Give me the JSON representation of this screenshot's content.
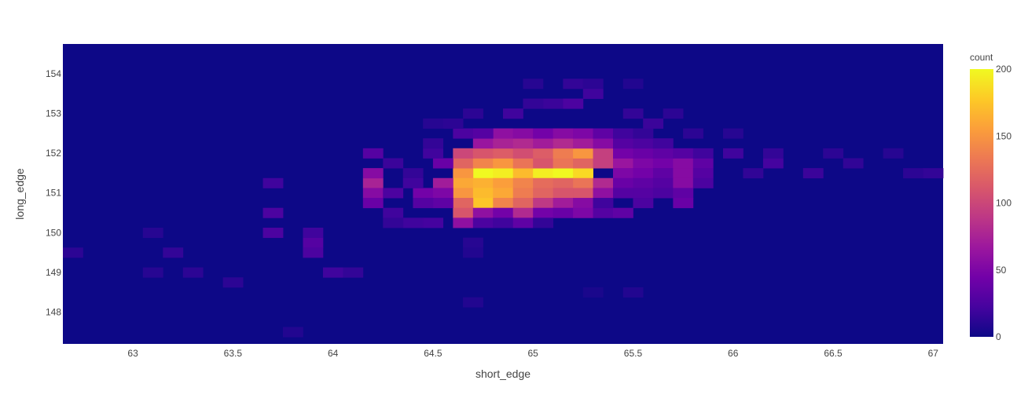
{
  "chart_data": {
    "type": "heatmap",
    "title": "",
    "xlabel": "short_edge",
    "ylabel": "long_edge",
    "colorbar_title": "count",
    "xlim": [
      62.65,
      67.05
    ],
    "ylim": [
      147.2,
      154.75
    ],
    "x_ticks": [
      "63",
      "63.5",
      "64",
      "64.5",
      "65",
      "65.5",
      "66",
      "66.5",
      "67"
    ],
    "x_tick_values": [
      63,
      63.5,
      64,
      64.5,
      65,
      65.5,
      66,
      66.5,
      67
    ],
    "y_ticks": [
      "148",
      "149",
      "150",
      "151",
      "152",
      "153",
      "154"
    ],
    "y_tick_values": [
      148,
      149,
      150,
      151,
      152,
      153,
      154
    ],
    "colorbar_ticks": [
      "0",
      "50",
      "100",
      "150",
      "200"
    ],
    "colorbar_tick_values": [
      0,
      50,
      100,
      150,
      200
    ],
    "zlim": [
      0,
      200
    ],
    "colorscale": "plasma",
    "colorscale_stops": [
      "#0d0887",
      "#46039f",
      "#7201a8",
      "#9c179e",
      "#bd3786",
      "#d8576b",
      "#ed7953",
      "#fb9f3a",
      "#fdca26",
      "#f0f921"
    ],
    "bin_width_x": 0.1,
    "bin_width_y": 0.25,
    "cells": [
      [
        64.75,
        151.5,
        200
      ],
      [
        64.85,
        151.5,
        195
      ],
      [
        64.95,
        151.5,
        170
      ],
      [
        65.05,
        151.5,
        195
      ],
      [
        65.15,
        151.5,
        200
      ],
      [
        65.25,
        151.5,
        185
      ],
      [
        64.65,
        151.5,
        150
      ],
      [
        64.65,
        151.25,
        160
      ],
      [
        64.75,
        151.25,
        165
      ],
      [
        64.85,
        151.25,
        155
      ],
      [
        64.95,
        151.25,
        140
      ],
      [
        65.05,
        151.25,
        125
      ],
      [
        65.15,
        151.25,
        120
      ],
      [
        65.25,
        151.25,
        130
      ],
      [
        65.35,
        151.25,
        80
      ],
      [
        64.65,
        151.0,
        150
      ],
      [
        64.75,
        151.0,
        170
      ],
      [
        64.85,
        151.0,
        160
      ],
      [
        64.95,
        151.0,
        135
      ],
      [
        65.05,
        151.0,
        120
      ],
      [
        65.15,
        151.0,
        110
      ],
      [
        65.25,
        151.0,
        110
      ],
      [
        65.35,
        151.0,
        60
      ],
      [
        64.75,
        150.75,
        175
      ],
      [
        64.85,
        150.75,
        140
      ],
      [
        64.95,
        150.75,
        120
      ],
      [
        65.05,
        150.75,
        90
      ],
      [
        65.15,
        150.75,
        70
      ],
      [
        65.25,
        150.75,
        55
      ],
      [
        64.65,
        150.75,
        120
      ],
      [
        64.65,
        150.5,
        110
      ],
      [
        64.75,
        150.5,
        60
      ],
      [
        64.85,
        150.5,
        45
      ],
      [
        64.95,
        150.5,
        80
      ],
      [
        65.05,
        150.5,
        45
      ],
      [
        65.15,
        150.5,
        40
      ],
      [
        65.25,
        150.5,
        50
      ],
      [
        65.35,
        150.5,
        30
      ],
      [
        64.65,
        150.25,
        60
      ],
      [
        64.75,
        150.25,
        25
      ],
      [
        64.85,
        150.25,
        20
      ],
      [
        64.95,
        150.25,
        35
      ],
      [
        65.05,
        150.25,
        15
      ],
      [
        64.65,
        151.75,
        120
      ],
      [
        64.75,
        151.75,
        140
      ],
      [
        64.85,
        151.75,
        150
      ],
      [
        64.95,
        151.75,
        130
      ],
      [
        65.05,
        151.75,
        110
      ],
      [
        65.15,
        151.75,
        130
      ],
      [
        65.25,
        151.75,
        120
      ],
      [
        65.35,
        151.75,
        95
      ],
      [
        64.55,
        151.75,
        40
      ],
      [
        64.65,
        152.0,
        100
      ],
      [
        64.75,
        152.0,
        110
      ],
      [
        64.85,
        152.0,
        115
      ],
      [
        64.95,
        152.0,
        105
      ],
      [
        65.05,
        152.0,
        115
      ],
      [
        65.15,
        152.0,
        135
      ],
      [
        65.25,
        152.0,
        150
      ],
      [
        65.35,
        152.0,
        95
      ],
      [
        65.45,
        152.0,
        75
      ],
      [
        64.75,
        152.25,
        65
      ],
      [
        64.85,
        152.25,
        75
      ],
      [
        64.95,
        152.25,
        80
      ],
      [
        65.05,
        152.25,
        70
      ],
      [
        65.15,
        152.25,
        80
      ],
      [
        65.25,
        152.25,
        70
      ],
      [
        65.35,
        152.25,
        55
      ],
      [
        64.85,
        152.5,
        60
      ],
      [
        64.95,
        152.5,
        55
      ],
      [
        65.05,
        152.5,
        45
      ],
      [
        65.15,
        152.5,
        55
      ],
      [
        65.25,
        152.5,
        50
      ],
      [
        65.35,
        152.5,
        35
      ],
      [
        64.55,
        151.25,
        70
      ],
      [
        64.45,
        151.0,
        45
      ],
      [
        64.55,
        151.0,
        50
      ],
      [
        64.55,
        150.75,
        35
      ],
      [
        64.45,
        150.75,
        30
      ],
      [
        64.2,
        151.25,
        75
      ],
      [
        64.2,
        151.0,
        55
      ],
      [
        64.2,
        150.75,
        40
      ],
      [
        64.2,
        151.5,
        55
      ],
      [
        64.2,
        152.0,
        30
      ],
      [
        65.45,
        151.75,
        65
      ],
      [
        65.55,
        151.75,
        50
      ],
      [
        65.65,
        151.75,
        45
      ],
      [
        65.75,
        151.75,
        55
      ],
      [
        65.85,
        151.75,
        35
      ],
      [
        65.45,
        151.5,
        50
      ],
      [
        65.55,
        151.5,
        45
      ],
      [
        65.65,
        151.5,
        35
      ],
      [
        65.75,
        151.5,
        55
      ],
      [
        65.85,
        151.5,
        30
      ],
      [
        65.45,
        151.25,
        40
      ],
      [
        65.55,
        151.25,
        35
      ],
      [
        65.65,
        151.25,
        30
      ],
      [
        65.75,
        151.25,
        55
      ],
      [
        65.85,
        151.25,
        25
      ],
      [
        65.45,
        151.0,
        30
      ],
      [
        65.55,
        151.0,
        30
      ],
      [
        65.65,
        151.0,
        25
      ],
      [
        65.75,
        151.0,
        35
      ],
      [
        65.45,
        152.0,
        45
      ],
      [
        65.55,
        152.0,
        40
      ],
      [
        65.65,
        152.0,
        35
      ],
      [
        65.75,
        152.0,
        30
      ],
      [
        65.85,
        152.0,
        20
      ],
      [
        65.35,
        150.75,
        20
      ],
      [
        65.45,
        150.5,
        35
      ],
      [
        65.55,
        150.75,
        25
      ],
      [
        65.75,
        150.75,
        40
      ],
      [
        64.65,
        152.5,
        25
      ],
      [
        64.75,
        152.5,
        30
      ],
      [
        65.45,
        152.25,
        30
      ],
      [
        65.55,
        152.25,
        25
      ],
      [
        65.65,
        152.25,
        20
      ],
      [
        65.45,
        152.5,
        20
      ],
      [
        65.55,
        152.5,
        15
      ],
      [
        64.5,
        152.0,
        20
      ],
      [
        64.5,
        152.25,
        15
      ],
      [
        64.4,
        151.5,
        15
      ],
      [
        64.3,
        151.75,
        18
      ],
      [
        64.4,
        151.25,
        20
      ],
      [
        64.3,
        151.0,
        25
      ],
      [
        64.3,
        150.5,
        20
      ],
      [
        64.4,
        150.25,
        20
      ],
      [
        64.5,
        150.25,
        22
      ],
      [
        64.3,
        150.25,
        15
      ],
      [
        63.7,
        151.25,
        20
      ],
      [
        63.7,
        150.5,
        25
      ],
      [
        63.7,
        150.0,
        25
      ],
      [
        63.9,
        149.75,
        30
      ],
      [
        63.9,
        149.5,
        25
      ],
      [
        64.0,
        149.0,
        20
      ],
      [
        64.1,
        149.0,
        15
      ],
      [
        63.9,
        150.0,
        20
      ],
      [
        63.2,
        149.5,
        15
      ],
      [
        62.7,
        149.5,
        12
      ],
      [
        63.1,
        149.0,
        10
      ],
      [
        63.3,
        149.0,
        12
      ],
      [
        63.5,
        148.75,
        12
      ],
      [
        63.1,
        150.0,
        10
      ],
      [
        65.5,
        148.5,
        8
      ],
      [
        65.3,
        148.5,
        5
      ],
      [
        64.7,
        148.25,
        8
      ],
      [
        64.7,
        149.75,
        10
      ],
      [
        64.7,
        149.5,
        8
      ],
      [
        63.8,
        147.5,
        8
      ],
      [
        66.2,
        151.75,
        22
      ],
      [
        66.4,
        151.5,
        18
      ],
      [
        66.6,
        151.75,
        14
      ],
      [
        66.9,
        151.5,
        12
      ],
      [
        67.0,
        151.5,
        15
      ],
      [
        66.0,
        152.0,
        20
      ],
      [
        66.2,
        152.0,
        15
      ],
      [
        66.5,
        152.0,
        12
      ],
      [
        66.8,
        152.0,
        10
      ],
      [
        66.1,
        151.5,
        14
      ],
      [
        65.3,
        153.5,
        20
      ],
      [
        65.2,
        153.75,
        15
      ],
      [
        65.1,
        153.25,
        18
      ],
      [
        65.2,
        153.25,
        25
      ],
      [
        65.0,
        153.25,
        15
      ],
      [
        64.9,
        153.0,
        20
      ],
      [
        65.5,
        153.0,
        15
      ],
      [
        65.7,
        153.0,
        12
      ],
      [
        65.6,
        152.75,
        18
      ],
      [
        65.8,
        152.5,
        12
      ],
      [
        66.0,
        152.5,
        10
      ],
      [
        65.0,
        153.75,
        10
      ],
      [
        65.3,
        153.75,
        12
      ],
      [
        65.5,
        153.75,
        8
      ],
      [
        64.7,
        153.0,
        12
      ],
      [
        64.6,
        152.75,
        12
      ],
      [
        64.5,
        152.75,
        10
      ]
    ]
  }
}
